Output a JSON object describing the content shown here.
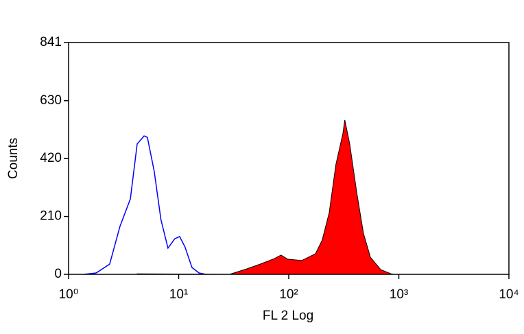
{
  "chart_data": {
    "type": "histogram-overlay",
    "x_label": "FL 2 Log",
    "y_label": "Counts",
    "xscale": "log",
    "xlim": [
      1,
      10000
    ],
    "xticks": [
      {
        "value": 1,
        "label": "10⁰"
      },
      {
        "value": 10,
        "label": "10¹"
      },
      {
        "value": 100,
        "label": "10²"
      },
      {
        "value": 1000,
        "label": "10³"
      },
      {
        "value": 10000,
        "label": "10⁴"
      }
    ],
    "ylim": [
      0,
      841
    ],
    "yticks": [
      0,
      210,
      420,
      630,
      841
    ],
    "series": [
      {
        "color": "#0000ff",
        "filled": false,
        "x": [
          1.37,
          1.78,
          2.36,
          2.93,
          3.64,
          4.2,
          4.85,
          5.2,
          6.0,
          6.9,
          8.0,
          9.2,
          10.2,
          11.4,
          13.2,
          15.3,
          17.6
        ],
        "values": [
          0,
          5,
          37,
          174,
          274,
          473,
          502,
          497,
          373,
          199,
          95,
          129,
          137,
          100,
          25,
          5,
          0
        ]
      },
      {
        "color": "#ff0000",
        "filled": true,
        "x": [
          4.2,
          29,
          41.6,
          55,
          74,
          85,
          98,
          131,
          175,
          201,
          233,
          268,
          310,
          323,
          358,
          414,
          477,
          552,
          686,
          850,
          910
        ],
        "values": [
          2,
          0,
          20,
          37,
          57,
          70,
          55,
          50,
          75,
          124,
          224,
          398,
          510,
          560,
          473,
          299,
          149,
          62,
          17,
          2,
          0
        ]
      }
    ]
  }
}
